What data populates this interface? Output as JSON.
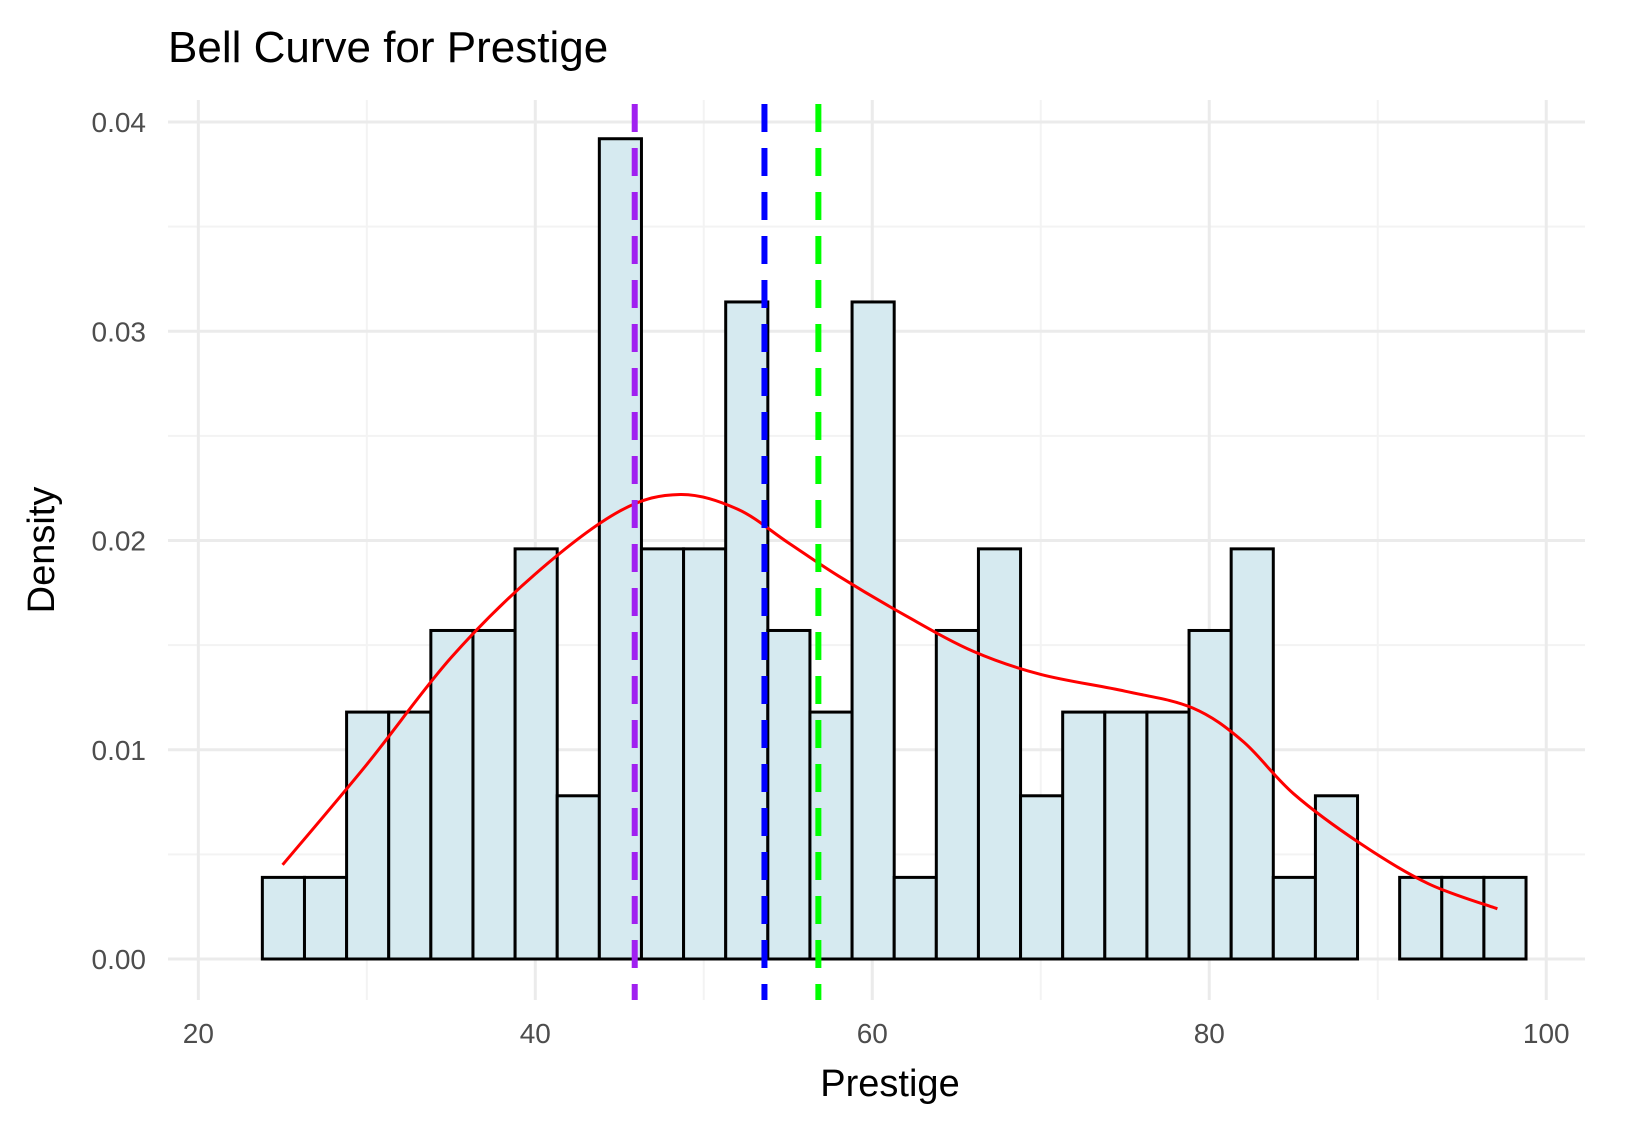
{
  "chart_data": {
    "type": "bar",
    "title": "Bell Curve for Prestige",
    "xlabel": "Prestige",
    "ylabel": "Density",
    "xlim": [
      20,
      100
    ],
    "ylim": [
      0,
      0.04
    ],
    "x_ticks": [
      20,
      40,
      60,
      80,
      100
    ],
    "x_tick_labels": [
      "20",
      "40",
      "60",
      "80",
      "100"
    ],
    "y_ticks": [
      0,
      0.01,
      0.02,
      0.03,
      0.04
    ],
    "y_tick_labels": [
      "0.00",
      "0.01",
      "0.02",
      "0.03",
      "0.04"
    ],
    "grid": true,
    "histogram": {
      "bin_start": 23.8,
      "bin_width": 2.5,
      "density": [
        0.0039,
        0.0039,
        0.0118,
        0.0118,
        0.0157,
        0.0157,
        0.0196,
        0.0078,
        0.0392,
        0.0196,
        0.0196,
        0.0314,
        0.0157,
        0.0118,
        0.0314,
        0.0039,
        0.0157,
        0.0196,
        0.0078,
        0.0118,
        0.0118,
        0.0118,
        0.0157,
        0.0196,
        0.0039,
        0.0078,
        0,
        0.0039,
        0.0039,
        0.0039
      ],
      "fill_color": "#d6eaf0",
      "edge_color": "#000000"
    },
    "density_curve": {
      "color": "#ff0000",
      "x": [
        25,
        30,
        35,
        40,
        45,
        48.6,
        52,
        55,
        58,
        62,
        66,
        70,
        75,
        79,
        82,
        85,
        89,
        93,
        97.1
      ],
      "y": [
        0.0045,
        0.0093,
        0.0144,
        0.0184,
        0.0214,
        0.0222,
        0.0215,
        0.0199,
        0.0183,
        0.0164,
        0.0147,
        0.0136,
        0.0128,
        0.012,
        0.0104,
        0.0079,
        0.0055,
        0.0036,
        0.0024
      ]
    },
    "reference_lines": [
      {
        "x": 45.9,
        "color": "#a020f0",
        "style": "dashed"
      },
      {
        "x": 53.6,
        "color": "#0000ff",
        "style": "dashed"
      },
      {
        "x": 56.8,
        "color": "#00ff00",
        "style": "dashed"
      }
    ]
  }
}
